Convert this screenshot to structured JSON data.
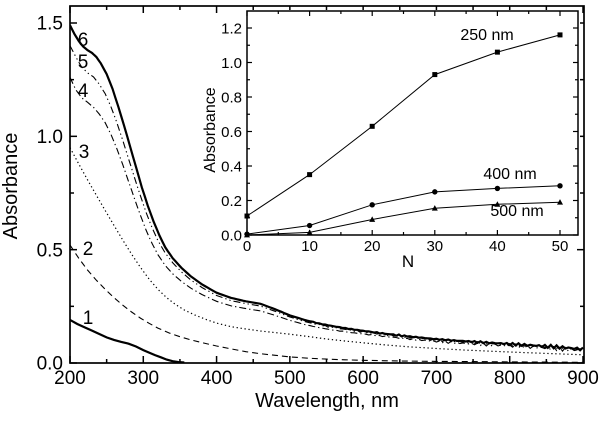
{
  "figure": {
    "background": "#ffffff",
    "line_color": "#000000"
  },
  "chart_data": [
    {
      "id": "main",
      "type": "line",
      "title": "",
      "xlabel": "Wavelength, nm",
      "ylabel": "Absorbance",
      "xlim": [
        200,
        900
      ],
      "ylim": [
        0,
        1.5
      ],
      "grid": false,
      "legend": "none (curves numbered 1-6 by annotation)",
      "xticks": [
        200,
        300,
        400,
        500,
        600,
        700,
        800,
        900
      ],
      "xtick_labels": [
        "200",
        "300",
        "400",
        "500",
        "600",
        "700",
        "800",
        "900"
      ],
      "xticks_minor": [
        250,
        350,
        450,
        550,
        650,
        750,
        850
      ],
      "yticks": [
        0.0,
        0.5,
        1.0,
        1.5
      ],
      "ytick_labels": [
        "0.0",
        "0.5",
        "1.0",
        "1.5"
      ],
      "yticks_minor": [
        0.25,
        0.75,
        1.25
      ],
      "series": [
        {
          "name": "1",
          "line_style": "solid",
          "line_width": 2.2,
          "noise": false,
          "points": [
            [
              200,
              0.19
            ],
            [
              210,
              0.172
            ],
            [
              220,
              0.157
            ],
            [
              230,
              0.143
            ],
            [
              240,
              0.128
            ],
            [
              250,
              0.113
            ],
            [
              260,
              0.102
            ],
            [
              270,
              0.093
            ],
            [
              280,
              0.085
            ],
            [
              290,
              0.073
            ],
            [
              300,
              0.057
            ],
            [
              308,
              0.046
            ],
            [
              316,
              0.035
            ],
            [
              324,
              0.025
            ],
            [
              332,
              0.015
            ],
            [
              340,
              0.008
            ],
            [
              348,
              0.004
            ],
            [
              356,
              0.002
            ]
          ]
        },
        {
          "name": "2",
          "line_style": "dashed",
          "line_width": 1.1,
          "noise": false,
          "points": [
            [
              200,
              0.52
            ],
            [
              212,
              0.462
            ],
            [
              224,
              0.41
            ],
            [
              236,
              0.365
            ],
            [
              248,
              0.325
            ],
            [
              260,
              0.288
            ],
            [
              272,
              0.255
            ],
            [
              284,
              0.225
            ],
            [
              296,
              0.198
            ],
            [
              308,
              0.175
            ],
            [
              320,
              0.154
            ],
            [
              335,
              0.133
            ],
            [
              350,
              0.116
            ],
            [
              365,
              0.102
            ],
            [
              380,
              0.09
            ],
            [
              400,
              0.075
            ],
            [
              420,
              0.062
            ],
            [
              440,
              0.05
            ],
            [
              460,
              0.041
            ],
            [
              480,
              0.034
            ],
            [
              500,
              0.027
            ],
            [
              525,
              0.021
            ],
            [
              550,
              0.017
            ],
            [
              575,
              0.014
            ],
            [
              600,
              0.012
            ],
            [
              650,
              0.009
            ],
            [
              700,
              0.007
            ],
            [
              750,
              0.006
            ],
            [
              800,
              0.005
            ],
            [
              850,
              0.004
            ],
            [
              900,
              0.003
            ]
          ]
        },
        {
          "name": "3",
          "line_style": "dotted",
          "line_width": 1.2,
          "noise": false,
          "points": [
            [
              200,
              0.95
            ],
            [
              212,
              0.878
            ],
            [
              224,
              0.808
            ],
            [
              236,
              0.74
            ],
            [
              248,
              0.673
            ],
            [
              260,
              0.607
            ],
            [
              272,
              0.542
            ],
            [
              284,
              0.48
            ],
            [
              296,
              0.422
            ],
            [
              308,
              0.37
            ],
            [
              320,
              0.325
            ],
            [
              332,
              0.288
            ],
            [
              344,
              0.258
            ],
            [
              356,
              0.234
            ],
            [
              370,
              0.212
            ],
            [
              385,
              0.193
            ],
            [
              400,
              0.176
            ],
            [
              420,
              0.16
            ],
            [
              440,
              0.15
            ],
            [
              460,
              0.141
            ],
            [
              480,
              0.134
            ],
            [
              500,
              0.127
            ],
            [
              525,
              0.117
            ],
            [
              550,
              0.106
            ],
            [
              575,
              0.097
            ],
            [
              600,
              0.089
            ],
            [
              630,
              0.08
            ],
            [
              660,
              0.072
            ],
            [
              700,
              0.064
            ],
            [
              740,
              0.057
            ],
            [
              780,
              0.051
            ],
            [
              820,
              0.046
            ],
            [
              860,
              0.041
            ],
            [
              900,
              0.036
            ]
          ]
        },
        {
          "name": "4",
          "line_style": "dash-dot",
          "line_width": 1.1,
          "noise": true,
          "points": [
            [
              200,
              1.26
            ],
            [
              208,
              1.205
            ],
            [
              216,
              1.17
            ],
            [
              224,
              1.15
            ],
            [
              232,
              1.128
            ],
            [
              240,
              1.098
            ],
            [
              248,
              1.06
            ],
            [
              256,
              1.008
            ],
            [
              264,
              0.945
            ],
            [
              272,
              0.875
            ],
            [
              280,
              0.8
            ],
            [
              288,
              0.725
            ],
            [
              296,
              0.652
            ],
            [
              304,
              0.585
            ],
            [
              312,
              0.527
            ],
            [
              320,
              0.478
            ],
            [
              330,
              0.43
            ],
            [
              340,
              0.394
            ],
            [
              352,
              0.36
            ],
            [
              365,
              0.33
            ],
            [
              380,
              0.302
            ],
            [
              400,
              0.272
            ],
            [
              420,
              0.252
            ],
            [
              440,
              0.24
            ],
            [
              460,
              0.23
            ],
            [
              480,
              0.21
            ],
            [
              500,
              0.188
            ],
            [
              520,
              0.17
            ],
            [
              540,
              0.156
            ],
            [
              560,
              0.145
            ],
            [
              580,
              0.136
            ],
            [
              600,
              0.128
            ],
            [
              630,
              0.117
            ],
            [
              660,
              0.107
            ],
            [
              700,
              0.095
            ],
            [
              740,
              0.086
            ],
            [
              780,
              0.079
            ],
            [
              820,
              0.072
            ],
            [
              860,
              0.064
            ],
            [
              900,
              0.055
            ]
          ]
        },
        {
          "name": "5",
          "line_style": "dash-dot-dot",
          "line_width": 1.1,
          "noise": true,
          "points": [
            [
              200,
              1.4
            ],
            [
              208,
              1.35
            ],
            [
              216,
              1.305
            ],
            [
              224,
              1.28
            ],
            [
              232,
              1.262
            ],
            [
              240,
              1.23
            ],
            [
              248,
              1.188
            ],
            [
              256,
              1.13
            ],
            [
              264,
              1.06
            ],
            [
              272,
              0.982
            ],
            [
              280,
              0.9
            ],
            [
              288,
              0.818
            ],
            [
              296,
              0.738
            ],
            [
              304,
              0.663
            ],
            [
              312,
              0.597
            ],
            [
              320,
              0.54
            ],
            [
              330,
              0.485
            ],
            [
              340,
              0.443
            ],
            [
              352,
              0.402
            ],
            [
              365,
              0.366
            ],
            [
              380,
              0.333
            ],
            [
              400,
              0.298
            ],
            [
              420,
              0.275
            ],
            [
              440,
              0.262
            ],
            [
              460,
              0.251
            ],
            [
              480,
              0.228
            ],
            [
              500,
              0.203
            ],
            [
              520,
              0.183
            ],
            [
              540,
              0.168
            ],
            [
              560,
              0.156
            ],
            [
              580,
              0.146
            ],
            [
              600,
              0.137
            ],
            [
              630,
              0.125
            ],
            [
              660,
              0.114
            ],
            [
              700,
              0.101
            ],
            [
              740,
              0.092
            ],
            [
              780,
              0.085
            ],
            [
              820,
              0.077
            ],
            [
              860,
              0.069
            ],
            [
              900,
              0.059
            ]
          ]
        },
        {
          "name": "6",
          "line_style": "solid",
          "line_width": 2.2,
          "noise": true,
          "points": [
            [
              200,
              1.49
            ],
            [
              206,
              1.452
            ],
            [
              212,
              1.42
            ],
            [
              218,
              1.396
            ],
            [
              224,
              1.38
            ],
            [
              230,
              1.368
            ],
            [
              236,
              1.35
            ],
            [
              242,
              1.322
            ],
            [
              250,
              1.275
            ],
            [
              258,
              1.21
            ],
            [
              266,
              1.13
            ],
            [
              274,
              1.045
            ],
            [
              282,
              0.955
            ],
            [
              290,
              0.865
            ],
            [
              298,
              0.775
            ],
            [
              306,
              0.695
            ],
            [
              314,
              0.625
            ],
            [
              322,
              0.563
            ],
            [
              330,
              0.51
            ],
            [
              340,
              0.463
            ],
            [
              352,
              0.42
            ],
            [
              365,
              0.382
            ],
            [
              380,
              0.347
            ],
            [
              400,
              0.31
            ],
            [
              420,
              0.287
            ],
            [
              440,
              0.272
            ],
            [
              460,
              0.261
            ],
            [
              480,
              0.237
            ],
            [
              500,
              0.21
            ],
            [
              520,
              0.19
            ],
            [
              540,
              0.174
            ],
            [
              560,
              0.162
            ],
            [
              580,
              0.151
            ],
            [
              600,
              0.142
            ],
            [
              630,
              0.129
            ],
            [
              660,
              0.118
            ],
            [
              700,
              0.105
            ],
            [
              740,
              0.096
            ],
            [
              780,
              0.088
            ],
            [
              820,
              0.08
            ],
            [
              860,
              0.072
            ],
            [
              900,
              0.061
            ]
          ]
        }
      ],
      "annotations": [
        {
          "text": "1"
        },
        {
          "text": "2"
        },
        {
          "text": "3"
        },
        {
          "text": "4"
        },
        {
          "text": "5"
        },
        {
          "text": "6"
        }
      ]
    },
    {
      "id": "inset",
      "type": "line",
      "title": "",
      "xlabel": "N",
      "ylabel": "Absorbance",
      "xlim": [
        0,
        53
      ],
      "ylim": [
        0,
        1.3
      ],
      "grid": false,
      "legend": "none (series labeled by annotation)",
      "xticks": [
        0,
        10,
        20,
        30,
        40,
        50
      ],
      "xtick_labels": [
        "0",
        "10",
        "20",
        "30",
        "40",
        "50"
      ],
      "xticks_minor": [
        5,
        15,
        25,
        35,
        45
      ],
      "yticks": [
        0.0,
        0.2,
        0.4,
        0.6,
        0.8,
        1.0,
        1.2
      ],
      "ytick_labels": [
        "0.0",
        "0.2",
        "0.4",
        "0.6",
        "0.8",
        "1.0",
        "1.2"
      ],
      "yticks_minor": [
        0.1,
        0.3,
        0.5,
        0.7,
        0.9,
        1.1
      ],
      "x": [
        0,
        10,
        20,
        30,
        40,
        50
      ],
      "series": [
        {
          "name": "250 nm",
          "marker": "square",
          "y": [
            0.11,
            0.35,
            0.63,
            0.93,
            1.06,
            1.16
          ]
        },
        {
          "name": "400 nm",
          "marker": "circle",
          "y": [
            0.005,
            0.055,
            0.175,
            0.25,
            0.27,
            0.285
          ]
        },
        {
          "name": "500 nm",
          "marker": "triangle",
          "y": [
            0.0,
            0.015,
            0.09,
            0.155,
            0.178,
            0.19
          ]
        }
      ],
      "annotations": [
        {
          "text": "250 nm"
        },
        {
          "text": "400 nm"
        },
        {
          "text": "500 nm"
        }
      ]
    }
  ]
}
